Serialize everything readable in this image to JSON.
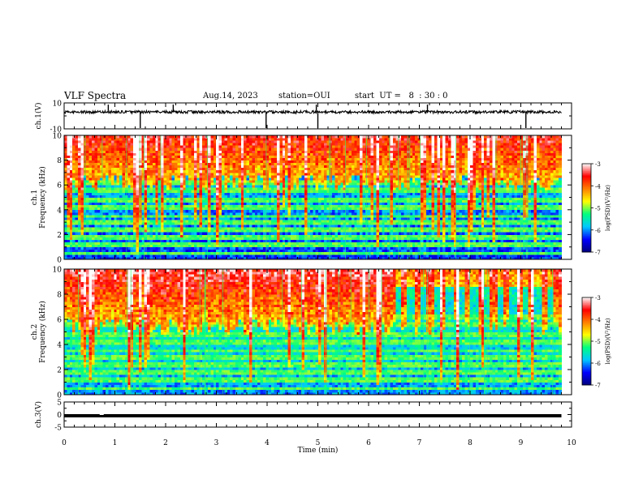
{
  "header": {
    "title": "VLF Spectra",
    "date": "Aug.14, 2023",
    "station": "station=OUI",
    "start_ut": "start  UT =   8  : 30 : 0"
  },
  "chart_data": [
    {
      "id": "ch1-waveform",
      "type": "line",
      "ylabel": "ch.1(V)",
      "ylim": [
        -10,
        10
      ],
      "yticks": [
        "10",
        "-10"
      ],
      "x_range_min": [
        0,
        9.8
      ],
      "trace_level_v": 3.0,
      "spikes_min": [
        0.87,
        1.5,
        2.15,
        3.98,
        4.97,
        5.0,
        7.16,
        9.1
      ]
    },
    {
      "id": "ch1-spectrogram",
      "type": "heatmap",
      "ylabel": "ch.1\nFrequency (kHz)",
      "ylim": [
        0,
        10
      ],
      "yticks": [
        "0",
        "2",
        "4",
        "6",
        "8",
        "10"
      ],
      "x_range_min": [
        0,
        9.8
      ],
      "colorbar": {
        "label": "log(PSD)(V²/Hz)",
        "range": [
          -7,
          -3
        ],
        "ticks": [
          "-3",
          "-4",
          "-5",
          "-6",
          "-7"
        ]
      }
    },
    {
      "id": "ch2-spectrogram",
      "type": "heatmap",
      "ylabel": "ch.2\nFrequency (kHz)",
      "ylim": [
        0,
        10
      ],
      "yticks": [
        "0",
        "2",
        "4",
        "6",
        "8",
        "10"
      ],
      "x_range_min": [
        0,
        9.8
      ],
      "colorbar": {
        "label": "log(PSD)(V²/Hz)",
        "range": [
          -7,
          -3
        ],
        "ticks": [
          "-3",
          "-4",
          "-5",
          "-6",
          "-7"
        ]
      }
    },
    {
      "id": "ch3-level",
      "type": "line",
      "ylabel": "ch.3(V)",
      "ylim": [
        -5,
        5
      ],
      "yticks": [
        "5",
        "0",
        "-5"
      ],
      "x_range_min": [
        0,
        9.8
      ],
      "trace_level_v": 0.0,
      "xlabel": "Time (min)",
      "xlim": [
        0,
        10
      ],
      "xticks": [
        "0",
        "1",
        "2",
        "3",
        "4",
        "5",
        "6",
        "7",
        "8",
        "9",
        "10"
      ]
    }
  ],
  "colors": {
    "colormap": [
      "#00007f",
      "#0000ff",
      "#00c8ff",
      "#00ff80",
      "#ffff00",
      "#ff7f00",
      "#ff0000",
      "#ffffff"
    ],
    "axis": "#000000"
  }
}
